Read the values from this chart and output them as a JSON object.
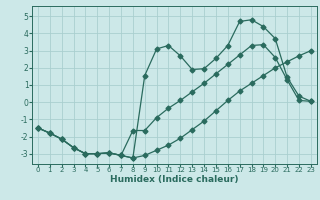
{
  "title": "",
  "xlabel": "Humidex (Indice chaleur)",
  "ylabel": "",
  "background_color": "#cce8e8",
  "grid_color": "#aacfcf",
  "line_color": "#2a6b5e",
  "xlim": [
    -0.5,
    23.5
  ],
  "ylim": [
    -3.6,
    5.6
  ],
  "xticks": [
    0,
    1,
    2,
    3,
    4,
    5,
    6,
    7,
    8,
    9,
    10,
    11,
    12,
    13,
    14,
    15,
    16,
    17,
    18,
    19,
    20,
    21,
    22,
    23
  ],
  "yticks": [
    -3,
    -2,
    -1,
    0,
    1,
    2,
    3,
    4,
    5
  ],
  "line1_x": [
    0,
    1,
    2,
    3,
    4,
    5,
    6,
    7,
    8,
    9,
    10,
    11,
    12,
    13,
    14,
    15,
    16,
    17,
    18,
    19,
    20,
    21,
    22,
    23
  ],
  "line1_y": [
    -1.5,
    -1.8,
    -2.15,
    -2.65,
    -3.0,
    -3.0,
    -2.95,
    -3.1,
    -3.25,
    -3.1,
    -2.8,
    -2.5,
    -2.1,
    -1.6,
    -1.1,
    -0.5,
    0.1,
    0.65,
    1.1,
    1.55,
    2.0,
    2.35,
    2.7,
    3.0
  ],
  "line2_x": [
    0,
    1,
    2,
    3,
    4,
    5,
    6,
    7,
    8,
    9,
    10,
    11,
    12,
    13,
    14,
    15,
    16,
    17,
    18,
    19,
    20,
    21,
    22,
    23
  ],
  "line2_y": [
    -1.5,
    -1.8,
    -2.15,
    -2.65,
    -3.0,
    -3.0,
    -2.95,
    -3.1,
    -1.65,
    -1.65,
    -0.9,
    -0.35,
    0.1,
    0.6,
    1.1,
    1.65,
    2.2,
    2.75,
    3.3,
    3.35,
    2.6,
    1.3,
    0.1,
    0.05
  ],
  "line3_x": [
    0,
    1,
    2,
    3,
    4,
    5,
    6,
    7,
    8,
    9,
    10,
    11,
    12,
    13,
    14,
    15,
    16,
    17,
    18,
    19,
    20,
    21,
    22,
    23
  ],
  "line3_y": [
    -1.5,
    -1.8,
    -2.15,
    -2.65,
    -3.0,
    -3.0,
    -2.95,
    -3.1,
    -3.25,
    1.55,
    3.1,
    3.3,
    2.7,
    1.9,
    1.95,
    2.55,
    3.3,
    4.7,
    4.8,
    4.4,
    3.7,
    1.45,
    0.35,
    0.05
  ]
}
